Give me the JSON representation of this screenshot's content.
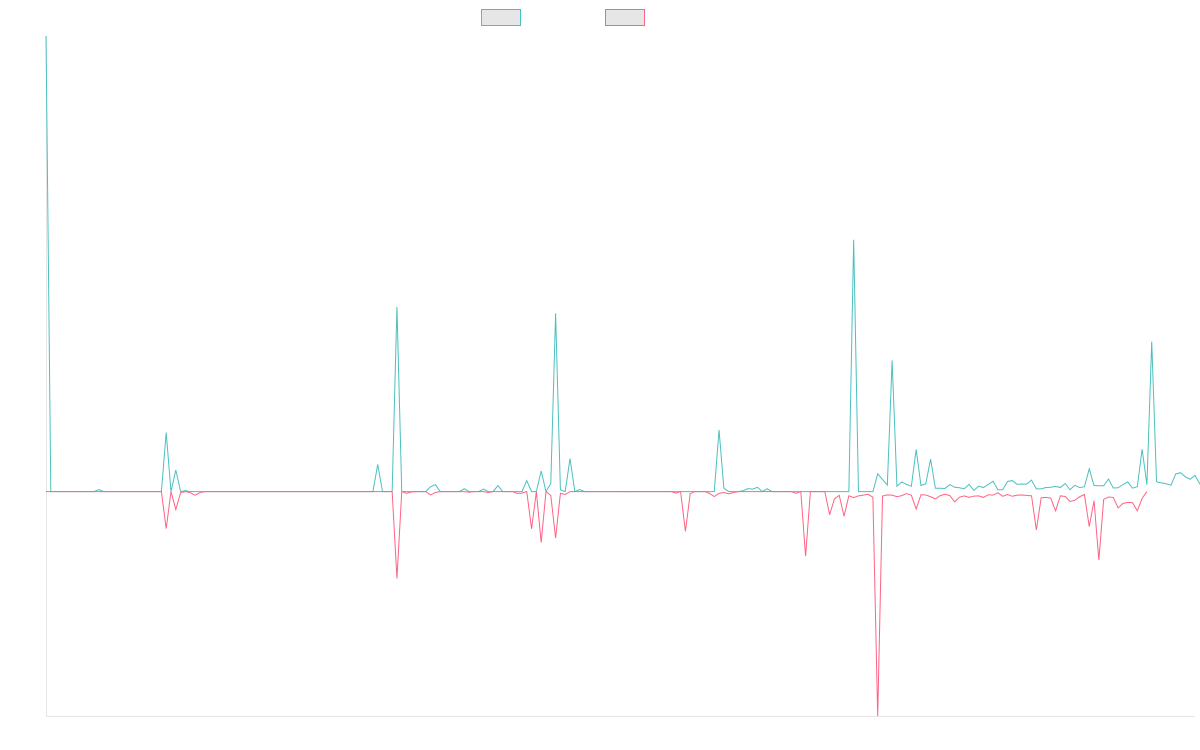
{
  "chart_data": {
    "type": "line",
    "title": "",
    "xlabel": "",
    "ylabel": "",
    "grid": false,
    "legend_position": "top-center",
    "x_count": 240,
    "ylim": [
      -100,
      203
    ],
    "series": [
      {
        "color": "#4bc0c0",
        "fill": "#e6e6e6",
        "values": [
          203,
          0,
          0,
          0,
          0,
          0,
          0,
          0,
          0,
          0,
          0,
          0.9,
          0,
          0,
          0,
          0,
          0,
          0,
          0,
          0,
          0,
          0,
          0,
          0,
          0,
          26.3,
          0,
          9.6,
          0,
          0.4,
          0,
          0,
          0,
          0,
          0,
          0,
          0,
          0,
          0,
          0,
          0,
          0,
          0,
          0,
          0,
          0,
          0,
          0,
          0,
          0,
          0,
          0,
          0,
          0,
          0,
          0,
          0,
          0,
          0,
          0,
          0,
          0,
          0,
          0,
          0,
          0,
          0,
          0,
          0,
          12.1,
          0,
          0,
          0,
          82.3,
          0,
          0,
          0,
          0,
          0,
          0,
          2.2,
          3.1,
          0,
          0,
          0,
          0,
          0,
          1.3,
          0,
          0,
          0,
          1.1,
          0,
          0,
          2.7,
          0,
          0,
          0,
          0,
          0,
          4.9,
          0,
          0,
          9.2,
          0,
          3.6,
          79.4,
          0.8,
          0,
          14.7,
          0,
          0.9,
          0,
          0,
          0,
          0,
          0,
          0,
          0,
          0,
          0,
          0,
          0,
          0,
          0,
          0,
          0,
          0,
          0,
          0,
          0,
          0,
          0,
          0,
          0,
          0,
          0,
          0,
          0,
          0,
          27.4,
          1.5,
          0,
          0,
          0,
          0.4,
          1.3,
          1.1,
          1.9,
          0,
          1.3,
          0,
          0,
          0,
          0,
          0,
          0,
          0,
          0,
          0,
          0,
          0,
          0,
          0,
          0,
          0,
          0,
          0,
          112.2,
          0,
          0,
          0,
          0,
          7.9,
          5.4,
          2.9,
          58.4,
          2.4,
          4.3,
          3.2,
          2.4,
          18.8,
          2.7,
          3.5,
          14.5,
          1.5,
          1.5,
          1.4,
          3.1,
          1.9,
          1.7,
          1.2,
          3.2,
          0.5,
          2.4,
          1.8,
          3.2,
          4.6,
          0.8,
          0.8,
          4.5,
          4.9,
          3.2,
          3.4,
          3.3,
          5.1,
          1.2,
          1.2,
          1.8,
          1.9,
          2.3,
          1.8,
          3.6,
          0.8,
          2.8,
          1.8,
          2.1,
          10.1,
          2.7,
          2.6,
          2.6,
          5.6,
          1.6,
          1.7,
          3.1,
          4.3,
          1.5,
          2.2,
          18.9,
          3,
          66.8,
          4.4,
          3.9,
          3.5,
          2.8,
          7.9,
          8.4,
          6.6,
          5.5,
          7.2,
          3.4,
          0.9
        ]
      },
      {
        "color": "#ff6384",
        "fill": "#e6e6e6",
        "values": [
          0,
          0,
          0,
          0,
          0,
          0,
          0,
          0,
          0,
          0,
          0,
          0,
          0,
          0,
          0,
          0,
          0,
          0,
          0,
          0,
          0,
          0,
          0,
          0,
          0,
          -16.5,
          0,
          -8,
          -0.5,
          0,
          -0.5,
          -1.6,
          -0.5,
          0,
          0,
          0,
          0,
          0,
          0,
          0,
          0,
          0,
          0,
          0,
          0,
          0,
          0,
          0,
          0,
          0,
          0,
          0,
          0,
          0,
          0,
          0,
          0,
          0,
          0,
          0,
          0,
          0,
          0,
          0,
          0,
          0,
          0,
          0,
          0,
          0,
          0,
          0,
          0,
          -38.7,
          0,
          -0.8,
          -0.2,
          0,
          0,
          0,
          -1.5,
          -0.4,
          0,
          0,
          0,
          0,
          0,
          0,
          -0.3,
          0,
          0,
          0,
          -0.4,
          0,
          0,
          0,
          0,
          0,
          -0.8,
          -0.7,
          0,
          -16.6,
          0,
          -22.7,
          0,
          -1.7,
          -20.7,
          -0.8,
          -1.3,
          0,
          0,
          0,
          0,
          0,
          0,
          0,
          0,
          0,
          0,
          0,
          0,
          -0.1,
          0,
          0,
          0,
          0,
          0,
          0,
          0,
          0,
          0,
          -0.7,
          0,
          -17.7,
          -0.9,
          0,
          0,
          0,
          -0.8,
          -2.2,
          -0.8,
          -0.4,
          -1,
          -0.4,
          0,
          0,
          0,
          0,
          0,
          0,
          0,
          0,
          0,
          0,
          0,
          0,
          -0.8,
          0,
          -28.8,
          0,
          0,
          0,
          0,
          -10.3,
          -3.3,
          -1.7,
          -11,
          -1.9,
          -2.7,
          -1.9,
          -1.6,
          -1.2,
          -2.5,
          -100,
          -2,
          -1.5,
          -1.6,
          -2.3,
          -1.8,
          -0.9,
          -1.6,
          -7.8,
          -1.4,
          -1.5,
          -2.3,
          -3.3,
          -1.8,
          -1.2,
          -1.8,
          -4.6,
          -2.5,
          -1.9,
          -2.6,
          -2,
          -1.9,
          -2.6,
          -1.4,
          -1.6,
          -0.5,
          -2.1,
          -1.3,
          -2.1,
          -1.6,
          -1.5,
          -1.7,
          -1.9,
          -17.1,
          -2.8,
          -2.6,
          -2.9,
          -8.6,
          -1.9,
          -2.2,
          -4.4,
          -3.9,
          -2.3,
          -1.3,
          -15.6,
          -4.1,
          -30.5,
          -3.5,
          -2.4,
          -2.6,
          -7.3,
          -5.3,
          -4.8,
          -4.9,
          -8.6,
          -3,
          0
        ]
      }
    ]
  }
}
